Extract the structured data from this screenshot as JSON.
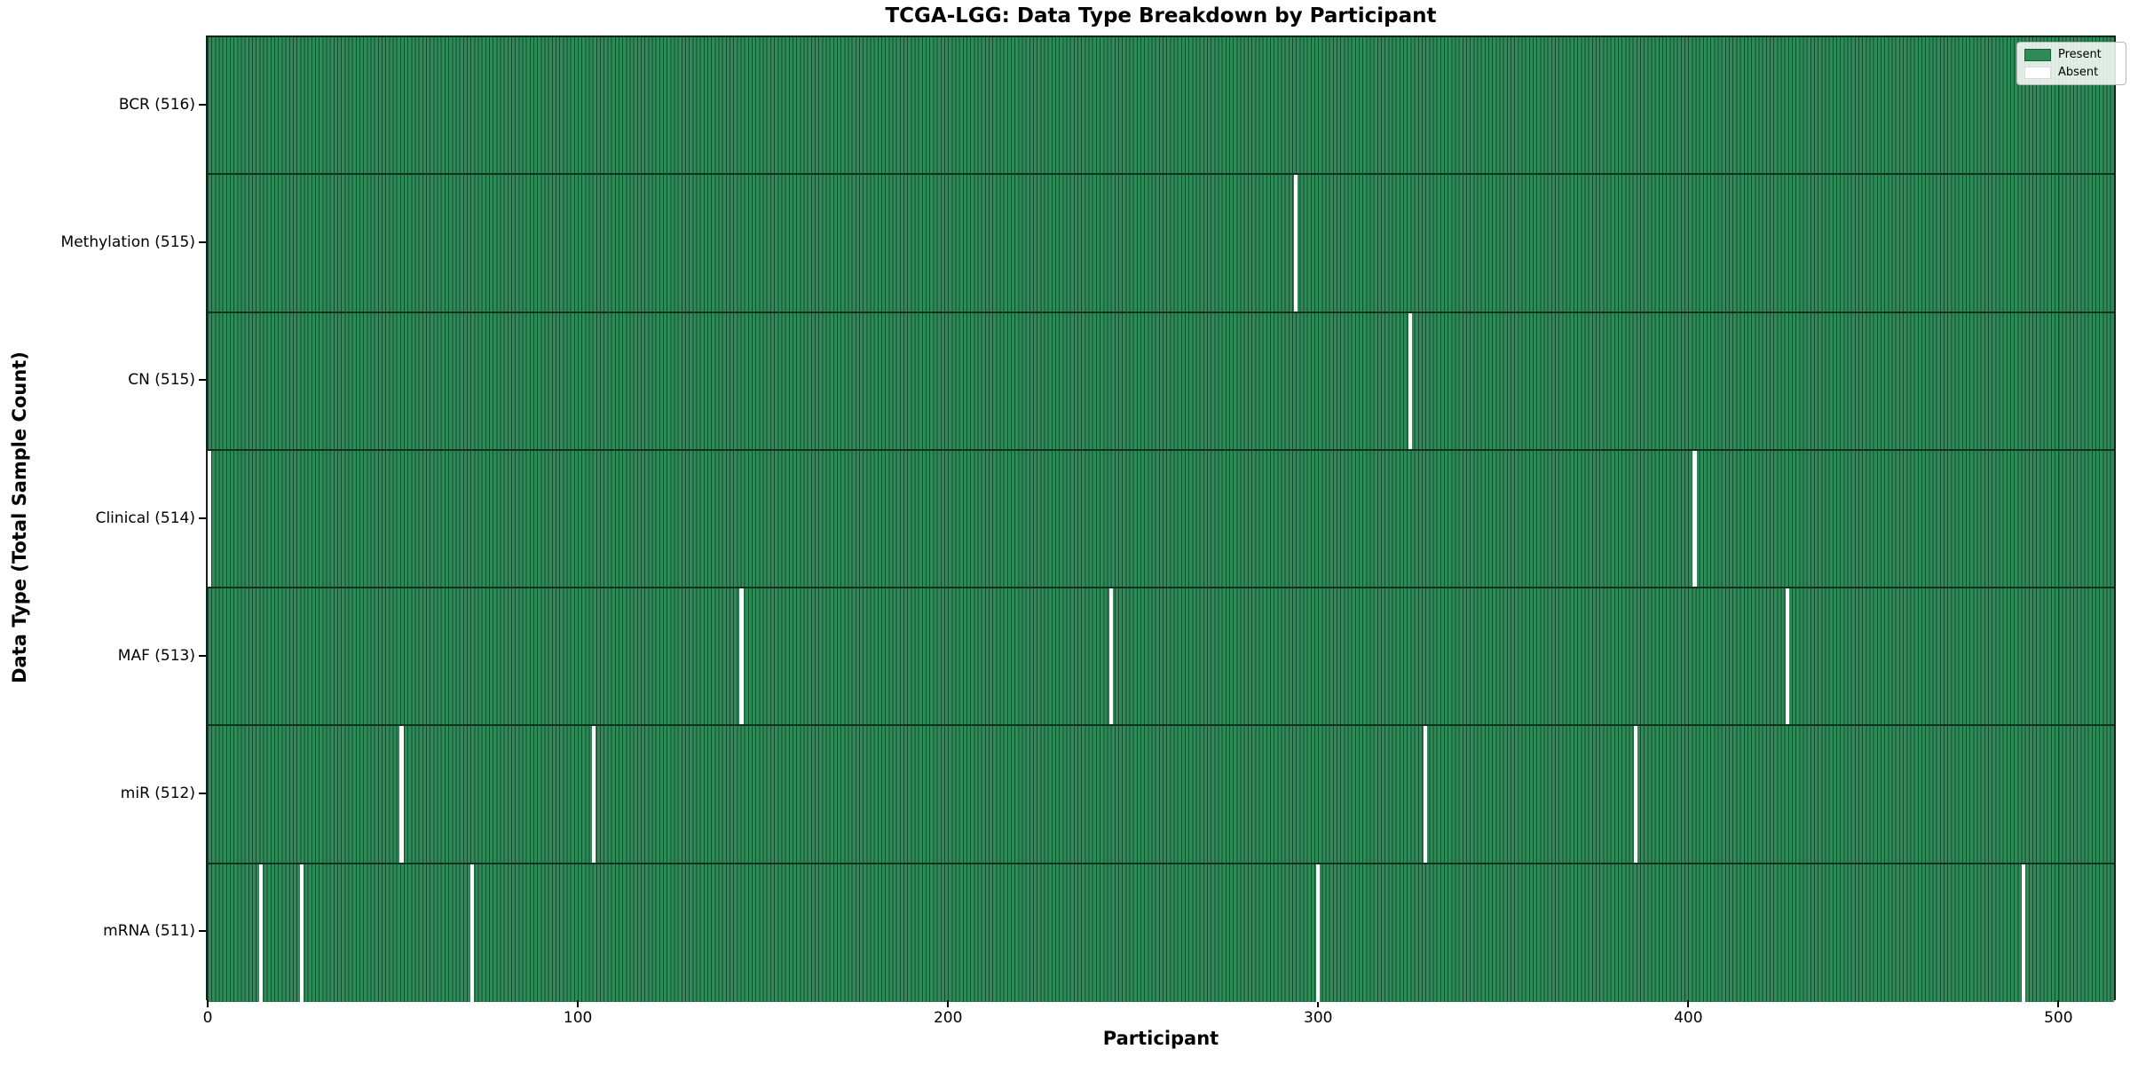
{
  "chart_data": {
    "type": "heatmap",
    "title": "TCGA-LGG: Data Type Breakdown by Participant",
    "xlabel": "Participant",
    "ylabel": "Data Type (Total Sample Count)",
    "n_participants": 516,
    "x_ticks": [
      0,
      100,
      200,
      300,
      400,
      500
    ],
    "x_tick_labels": [
      "0",
      "100",
      "200",
      "300",
      "400",
      "500"
    ],
    "rows": [
      {
        "label": "BCR",
        "count": 516,
        "display": "BCR (516)",
        "absent_participants": []
      },
      {
        "label": "Methylation",
        "count": 515,
        "display": "Methylation (515)",
        "absent_participants": [
          294
        ]
      },
      {
        "label": "CN",
        "count": 515,
        "display": "CN (515)",
        "absent_participants": [
          325
        ]
      },
      {
        "label": "Clinical",
        "count": 514,
        "display": "Clinical (514)",
        "absent_participants": [
          0,
          402
        ]
      },
      {
        "label": "MAF",
        "count": 513,
        "display": "MAF (513)",
        "absent_participants": [
          144,
          244,
          427
        ]
      },
      {
        "label": "miR",
        "count": 512,
        "display": "miR (512)",
        "absent_participants": [
          52,
          104,
          329,
          386
        ]
      },
      {
        "label": "mRNA",
        "count": 511,
        "display": "mRNA (511)",
        "absent_participants": [
          14,
          25,
          71,
          300,
          491
        ]
      }
    ],
    "legend": {
      "position": "upper right",
      "items": [
        {
          "label": "Present",
          "color": "#2e8b57",
          "edge": "#1d5c3a"
        },
        {
          "label": "Absent",
          "color": "#ffffff",
          "edge": "#d8d8d8"
        }
      ]
    },
    "colors": {
      "present": "#2e8b57",
      "cell_edge": "#17492e",
      "absent": "#ffffff",
      "row_divider": "#10331f"
    }
  }
}
